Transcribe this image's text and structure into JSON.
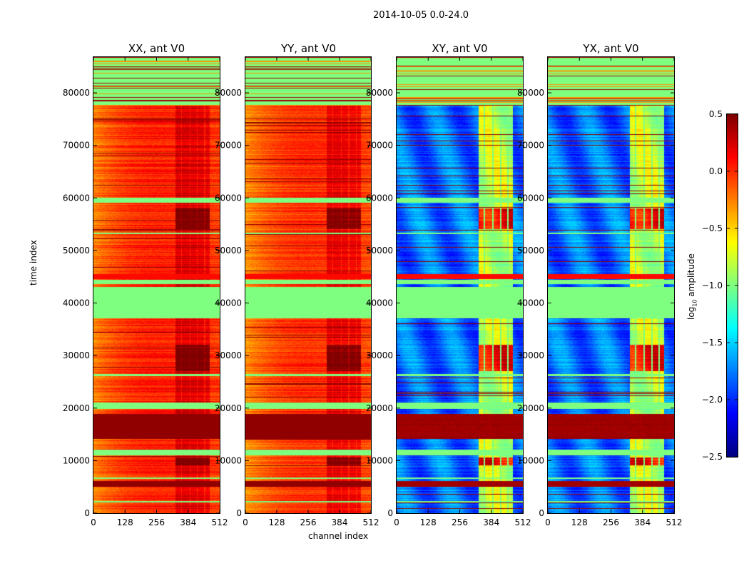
{
  "chart_data": {
    "type": "heatmap",
    "title": "2014-10-05 0.0-24.0",
    "xlabel": "channel index",
    "ylabel": "time index",
    "xlim": [
      0,
      512
    ],
    "ylim": [
      0,
      86800
    ],
    "xticks": [
      "0",
      "128",
      "256",
      "384",
      "512"
    ],
    "xtick_values": [
      0,
      128,
      256,
      384,
      512
    ],
    "yticks": [
      "0",
      "10000",
      "20000",
      "30000",
      "40000",
      "50000",
      "60000",
      "70000",
      "80000"
    ],
    "ytick_values": [
      0,
      10000,
      20000,
      30000,
      40000,
      50000,
      60000,
      70000,
      80000
    ],
    "panels": [
      {
        "title": "XX, ant V0",
        "kind": "auto",
        "base": 0.05
      },
      {
        "title": "YY, ant V0",
        "kind": "auto",
        "base": 0.0
      },
      {
        "title": "XY, ant V0",
        "kind": "cross",
        "base": -1.8
      },
      {
        "title": "YX, ant V0",
        "kind": "cross",
        "base": -1.8
      }
    ],
    "flagged_bands": [
      [
        77500,
        86800,
        -1.0
      ],
      [
        37000,
        43000,
        -1.0
      ],
      [
        43500,
        44400,
        -1.0
      ],
      [
        44500,
        45500,
        0.1
      ],
      [
        19800,
        21000,
        -1.0
      ],
      [
        11000,
        12000,
        -1.0
      ],
      [
        59000,
        60000,
        -1.0
      ],
      [
        26000,
        26400,
        -1.0
      ],
      [
        53000,
        53300,
        -1.0
      ],
      [
        2000,
        2300,
        -1.0
      ],
      [
        6400,
        6700,
        -1.0
      ]
    ],
    "hot_bands": [
      [
        14000,
        18800,
        0.45
      ],
      [
        5000,
        6000,
        0.45
      ]
    ],
    "active_channels": [
      330,
      470
    ],
    "colorbar": {
      "colormap": "jet",
      "range": [
        -2.5,
        0.5
      ],
      "ticks": [
        "0.5",
        "0.0",
        "−0.5",
        "−1.0",
        "−1.5",
        "−2.0",
        "−2.5"
      ],
      "tick_values": [
        0.5,
        0.0,
        -0.5,
        -1.0,
        -1.5,
        -2.0,
        -2.5
      ],
      "label": {
        "prefix": "log",
        "sub": "10",
        "suffix": " amplitude"
      }
    }
  }
}
